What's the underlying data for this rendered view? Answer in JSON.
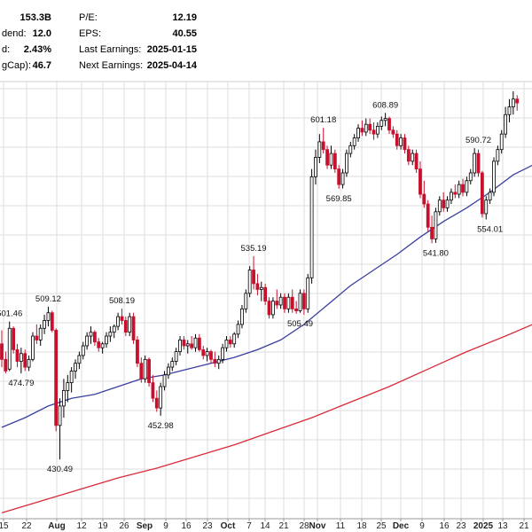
{
  "stats_panel": {
    "left": [
      {
        "label": "",
        "value": "153.3B"
      },
      {
        "label": "dend:",
        "value": "12.0"
      },
      {
        "label": "d:",
        "value": "2.43%"
      },
      {
        "label": "gCap):",
        "value": "46.7"
      }
    ],
    "right": [
      {
        "label": "P/E:",
        "value": "12.19"
      },
      {
        "label": "EPS:",
        "value": "40.55"
      },
      {
        "label": "Last Earnings:",
        "value": "2025-01-15"
      },
      {
        "label": "Next Earnings:",
        "value": "2025-04-14"
      }
    ]
  },
  "colors": {
    "up_candle": "#ffffff",
    "down_candle": "#c8102e",
    "black_candle": "#000000",
    "ma_short": "#3b3f9e",
    "ma_long": "#d92b3a",
    "grid": "#dddddd"
  },
  "chart_data": {
    "type": "candlestick",
    "grid": true,
    "ylim": [
      400,
      625
    ],
    "x_ticks": [
      {
        "label": "15",
        "bold": false
      },
      {
        "label": "22",
        "bold": false
      },
      {
        "label": "Aug",
        "bold": true
      },
      {
        "label": "12",
        "bold": false
      },
      {
        "label": "19",
        "bold": false
      },
      {
        "label": "26",
        "bold": false
      },
      {
        "label": "Sep",
        "bold": true
      },
      {
        "label": "9",
        "bold": false
      },
      {
        "label": "16",
        "bold": false
      },
      {
        "label": "23",
        "bold": false
      },
      {
        "label": "Oct",
        "bold": true
      },
      {
        "label": "7",
        "bold": false
      },
      {
        "label": "14",
        "bold": false
      },
      {
        "label": "21",
        "bold": false
      },
      {
        "label": "28",
        "bold": false
      },
      {
        "label": "Nov",
        "bold": true
      },
      {
        "label": "11",
        "bold": false
      },
      {
        "label": "18",
        "bold": false
      },
      {
        "label": "25",
        "bold": false
      },
      {
        "label": "Dec",
        "bold": true
      },
      {
        "label": "9",
        "bold": false
      },
      {
        "label": "16",
        "bold": false
      },
      {
        "label": "23",
        "bold": false
      },
      {
        "label": "2025",
        "bold": true
      },
      {
        "label": "13",
        "bold": false
      },
      {
        "label": "21",
        "bold": false
      }
    ],
    "annotations": [
      {
        "label": "501.46",
        "value": 501.46,
        "x_index": 2,
        "pos": "above"
      },
      {
        "label": "474.79",
        "value": 474.79,
        "x_index": 5,
        "pos": "below"
      },
      {
        "label": "509.12",
        "value": 509.12,
        "x_index": 12,
        "pos": "above"
      },
      {
        "label": "430.49",
        "value": 430.49,
        "x_index": 15,
        "pos": "below"
      },
      {
        "label": "508.19",
        "value": 508.19,
        "x_index": 31,
        "pos": "above"
      },
      {
        "label": "452.98",
        "value": 452.98,
        "x_index": 41,
        "pos": "below"
      },
      {
        "label": "535.19",
        "value": 535.19,
        "x_index": 65,
        "pos": "above"
      },
      {
        "label": "505.49",
        "value": 505.49,
        "x_index": 77,
        "pos": "below"
      },
      {
        "label": "601.18",
        "value": 601.18,
        "x_index": 83,
        "pos": "above"
      },
      {
        "label": "569.85",
        "value": 569.85,
        "x_index": 87,
        "pos": "below"
      },
      {
        "label": "608.89",
        "value": 608.89,
        "x_index": 99,
        "pos": "above"
      },
      {
        "label": "541.80",
        "value": 541.8,
        "x_index": 112,
        "pos": "below"
      },
      {
        "label": "590.72",
        "value": 590.72,
        "x_index": 123,
        "pos": "above"
      },
      {
        "label": "554.01",
        "value": 554.01,
        "x_index": 126,
        "pos": "below"
      }
    ],
    "candles": [
      [
        490,
        497,
        478,
        482
      ],
      [
        482,
        486,
        474.79,
        476
      ],
      [
        477,
        501.46,
        476,
        498
      ],
      [
        498,
        499,
        485,
        487
      ],
      [
        487,
        490,
        478,
        481
      ],
      [
        481,
        488,
        474.79,
        485
      ],
      [
        485,
        487,
        476,
        478
      ],
      [
        478,
        484,
        476,
        482
      ],
      [
        482,
        496,
        481,
        494
      ],
      [
        494,
        500,
        490,
        492
      ],
      [
        492,
        500,
        489,
        498
      ],
      [
        498,
        505,
        495,
        502
      ],
      [
        502,
        509.12,
        499,
        506
      ],
      [
        506,
        507,
        496,
        497
      ],
      [
        497,
        498,
        445,
        448
      ],
      [
        448,
        462,
        430.49,
        458
      ],
      [
        458,
        472,
        452,
        466
      ],
      [
        466,
        474,
        460,
        470
      ],
      [
        470,
        478,
        465,
        476
      ],
      [
        476,
        482,
        472,
        480
      ],
      [
        480,
        486,
        477,
        484
      ],
      [
        484,
        491,
        482,
        489
      ],
      [
        489,
        496,
        487,
        494
      ],
      [
        494,
        499,
        490,
        496
      ],
      [
        496,
        497,
        489,
        491
      ],
      [
        491,
        493,
        486,
        488
      ],
      [
        488,
        491,
        485,
        490
      ],
      [
        490,
        496,
        488,
        494
      ],
      [
        494,
        499,
        491,
        496
      ],
      [
        496,
        500,
        493,
        499
      ],
      [
        499,
        506,
        497,
        504
      ],
      [
        504,
        508.19,
        500,
        502
      ],
      [
        502,
        504,
        494,
        496
      ],
      [
        496,
        506,
        494,
        504
      ],
      [
        504,
        506,
        490,
        492
      ],
      [
        492,
        494,
        478,
        480
      ],
      [
        480,
        483,
        470,
        472
      ],
      [
        472,
        484,
        470,
        482
      ],
      [
        482,
        483,
        468,
        470
      ],
      [
        470,
        474,
        460,
        462
      ],
      [
        462,
        466,
        455,
        457
      ],
      [
        457,
        470,
        452.98,
        468
      ],
      [
        468,
        476,
        466,
        474
      ],
      [
        474,
        480,
        472,
        478
      ],
      [
        478,
        483,
        476,
        481
      ],
      [
        481,
        488,
        479,
        486
      ],
      [
        486,
        494,
        484,
        492
      ],
      [
        492,
        494,
        487,
        489
      ],
      [
        489,
        492,
        485,
        490
      ],
      [
        490,
        494,
        487,
        488
      ],
      [
        488,
        495,
        486,
        493
      ],
      [
        493,
        495,
        486,
        487
      ],
      [
        487,
        489,
        482,
        484
      ],
      [
        484,
        488,
        481,
        486
      ],
      [
        486,
        487,
        480,
        482
      ],
      [
        482,
        486,
        478,
        480
      ],
      [
        480,
        484,
        477,
        482
      ],
      [
        482,
        490,
        480,
        488
      ],
      [
        488,
        494,
        486,
        492
      ],
      [
        492,
        494,
        488,
        490
      ],
      [
        490,
        496,
        488,
        495
      ],
      [
        495,
        502,
        493,
        500
      ],
      [
        500,
        510,
        498,
        508
      ],
      [
        508,
        518,
        506,
        516
      ],
      [
        516,
        530,
        514,
        528
      ],
      [
        528,
        535.19,
        518,
        521
      ],
      [
        521,
        526,
        515,
        518
      ],
      [
        518,
        522,
        512,
        519
      ],
      [
        519,
        521,
        510,
        512
      ],
      [
        512,
        514,
        503,
        505
      ],
      [
        505,
        514,
        503,
        512
      ],
      [
        512,
        518,
        508,
        510
      ],
      [
        510,
        516,
        508,
        514
      ],
      [
        514,
        516,
        506,
        508
      ],
      [
        508,
        516,
        506,
        514
      ],
      [
        514,
        518,
        506,
        508
      ],
      [
        508,
        512,
        505.49,
        507
      ],
      [
        507,
        518,
        506,
        516
      ],
      [
        516,
        518,
        505,
        508
      ],
      [
        508,
        526,
        506,
        524
      ],
      [
        524,
        580,
        521,
        576
      ],
      [
        576,
        590,
        572,
        586
      ],
      [
        586,
        598,
        583,
        594
      ],
      [
        594,
        601.18,
        588,
        590
      ],
      [
        590,
        592,
        580,
        582
      ],
      [
        582,
        592,
        580,
        588
      ],
      [
        588,
        590,
        578,
        580
      ],
      [
        580,
        582,
        569.85,
        572
      ],
      [
        572,
        580,
        570,
        578
      ],
      [
        578,
        590,
        576,
        588
      ],
      [
        588,
        594,
        586,
        592
      ],
      [
        592,
        598,
        590,
        596
      ],
      [
        596,
        603,
        594,
        601
      ],
      [
        601,
        605,
        597,
        599
      ],
      [
        599,
        606,
        597,
        603
      ],
      [
        603,
        606,
        598,
        600
      ],
      [
        600,
        604,
        595,
        598
      ],
      [
        598,
        604,
        596,
        602
      ],
      [
        602,
        607,
        600,
        605
      ],
      [
        605,
        608.89,
        602,
        606
      ],
      [
        606,
        607,
        598,
        600
      ],
      [
        600,
        602,
        596,
        598
      ],
      [
        598,
        600,
        590,
        592
      ],
      [
        592,
        598,
        590,
        596
      ],
      [
        596,
        598,
        588,
        590
      ],
      [
        590,
        592,
        582,
        584
      ],
      [
        584,
        590,
        582,
        588
      ],
      [
        588,
        590,
        578,
        580
      ],
      [
        580,
        584,
        565,
        567
      ],
      [
        567,
        574,
        560,
        562
      ],
      [
        562,
        564,
        548,
        550
      ],
      [
        550,
        556,
        541.8,
        544
      ],
      [
        544,
        560,
        542,
        558
      ],
      [
        558,
        566,
        556,
        564
      ],
      [
        564,
        568,
        558,
        560
      ],
      [
        560,
        566,
        558,
        564
      ],
      [
        564,
        570,
        562,
        568
      ],
      [
        568,
        572,
        565,
        567
      ],
      [
        567,
        574,
        565,
        572
      ],
      [
        572,
        575,
        566,
        568
      ],
      [
        568,
        576,
        566,
        574
      ],
      [
        574,
        580,
        572,
        578
      ],
      [
        578,
        590.72,
        576,
        588
      ],
      [
        588,
        590,
        576,
        578
      ],
      [
        578,
        579,
        555,
        557
      ],
      [
        557,
        566,
        554.01,
        564
      ],
      [
        564,
        570,
        562,
        568
      ],
      [
        568,
        586,
        566,
        584
      ],
      [
        584,
        592,
        582,
        590
      ],
      [
        590,
        600,
        588,
        598
      ],
      [
        598,
        612,
        596,
        608
      ],
      [
        608,
        616,
        604,
        612
      ],
      [
        612,
        620,
        608,
        616
      ],
      [
        616,
        618,
        610,
        614
      ]
    ],
    "ma_short": [
      [
        0,
        447
      ],
      [
        6,
        452
      ],
      [
        12,
        458
      ],
      [
        18,
        462
      ],
      [
        24,
        464
      ],
      [
        30,
        468
      ],
      [
        36,
        472
      ],
      [
        42,
        474
      ],
      [
        48,
        477
      ],
      [
        54,
        480
      ],
      [
        60,
        483
      ],
      [
        66,
        487
      ],
      [
        72,
        492
      ],
      [
        78,
        500
      ],
      [
        84,
        510
      ],
      [
        90,
        520
      ],
      [
        96,
        528
      ],
      [
        102,
        536
      ],
      [
        108,
        545
      ],
      [
        114,
        553
      ],
      [
        120,
        560
      ],
      [
        126,
        568
      ],
      [
        132,
        577
      ],
      [
        137,
        582
      ]
    ],
    "ma_long": [
      [
        0,
        403
      ],
      [
        10,
        409
      ],
      [
        20,
        415
      ],
      [
        30,
        421
      ],
      [
        40,
        426
      ],
      [
        50,
        432
      ],
      [
        60,
        438
      ],
      [
        70,
        445
      ],
      [
        80,
        452
      ],
      [
        90,
        460
      ],
      [
        100,
        468
      ],
      [
        110,
        477
      ],
      [
        120,
        486
      ],
      [
        130,
        494
      ],
      [
        137,
        500
      ]
    ]
  }
}
